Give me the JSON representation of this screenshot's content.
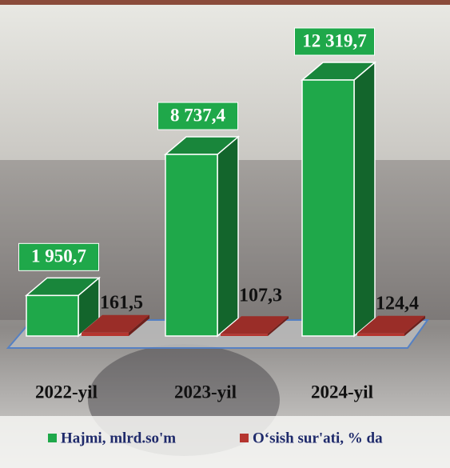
{
  "chart_data": {
    "type": "bar3d",
    "categories": [
      "2022-yil",
      "2023-yil",
      "2024-yil"
    ],
    "series": [
      {
        "name": "Hajmi, mlrd.so'm",
        "color": "#1fa84a",
        "values": [
          1950.7,
          8737.4,
          12319.7
        ],
        "value_labels": [
          "1 950,7",
          "8 737,4",
          "12 319,7"
        ]
      },
      {
        "name": "O‘sish sur'ati, % da",
        "color": "#b5352f",
        "values": [
          161.5,
          107.3,
          124.4
        ],
        "value_labels": [
          "161,5",
          "107,3",
          "124,4"
        ]
      }
    ]
  }
}
